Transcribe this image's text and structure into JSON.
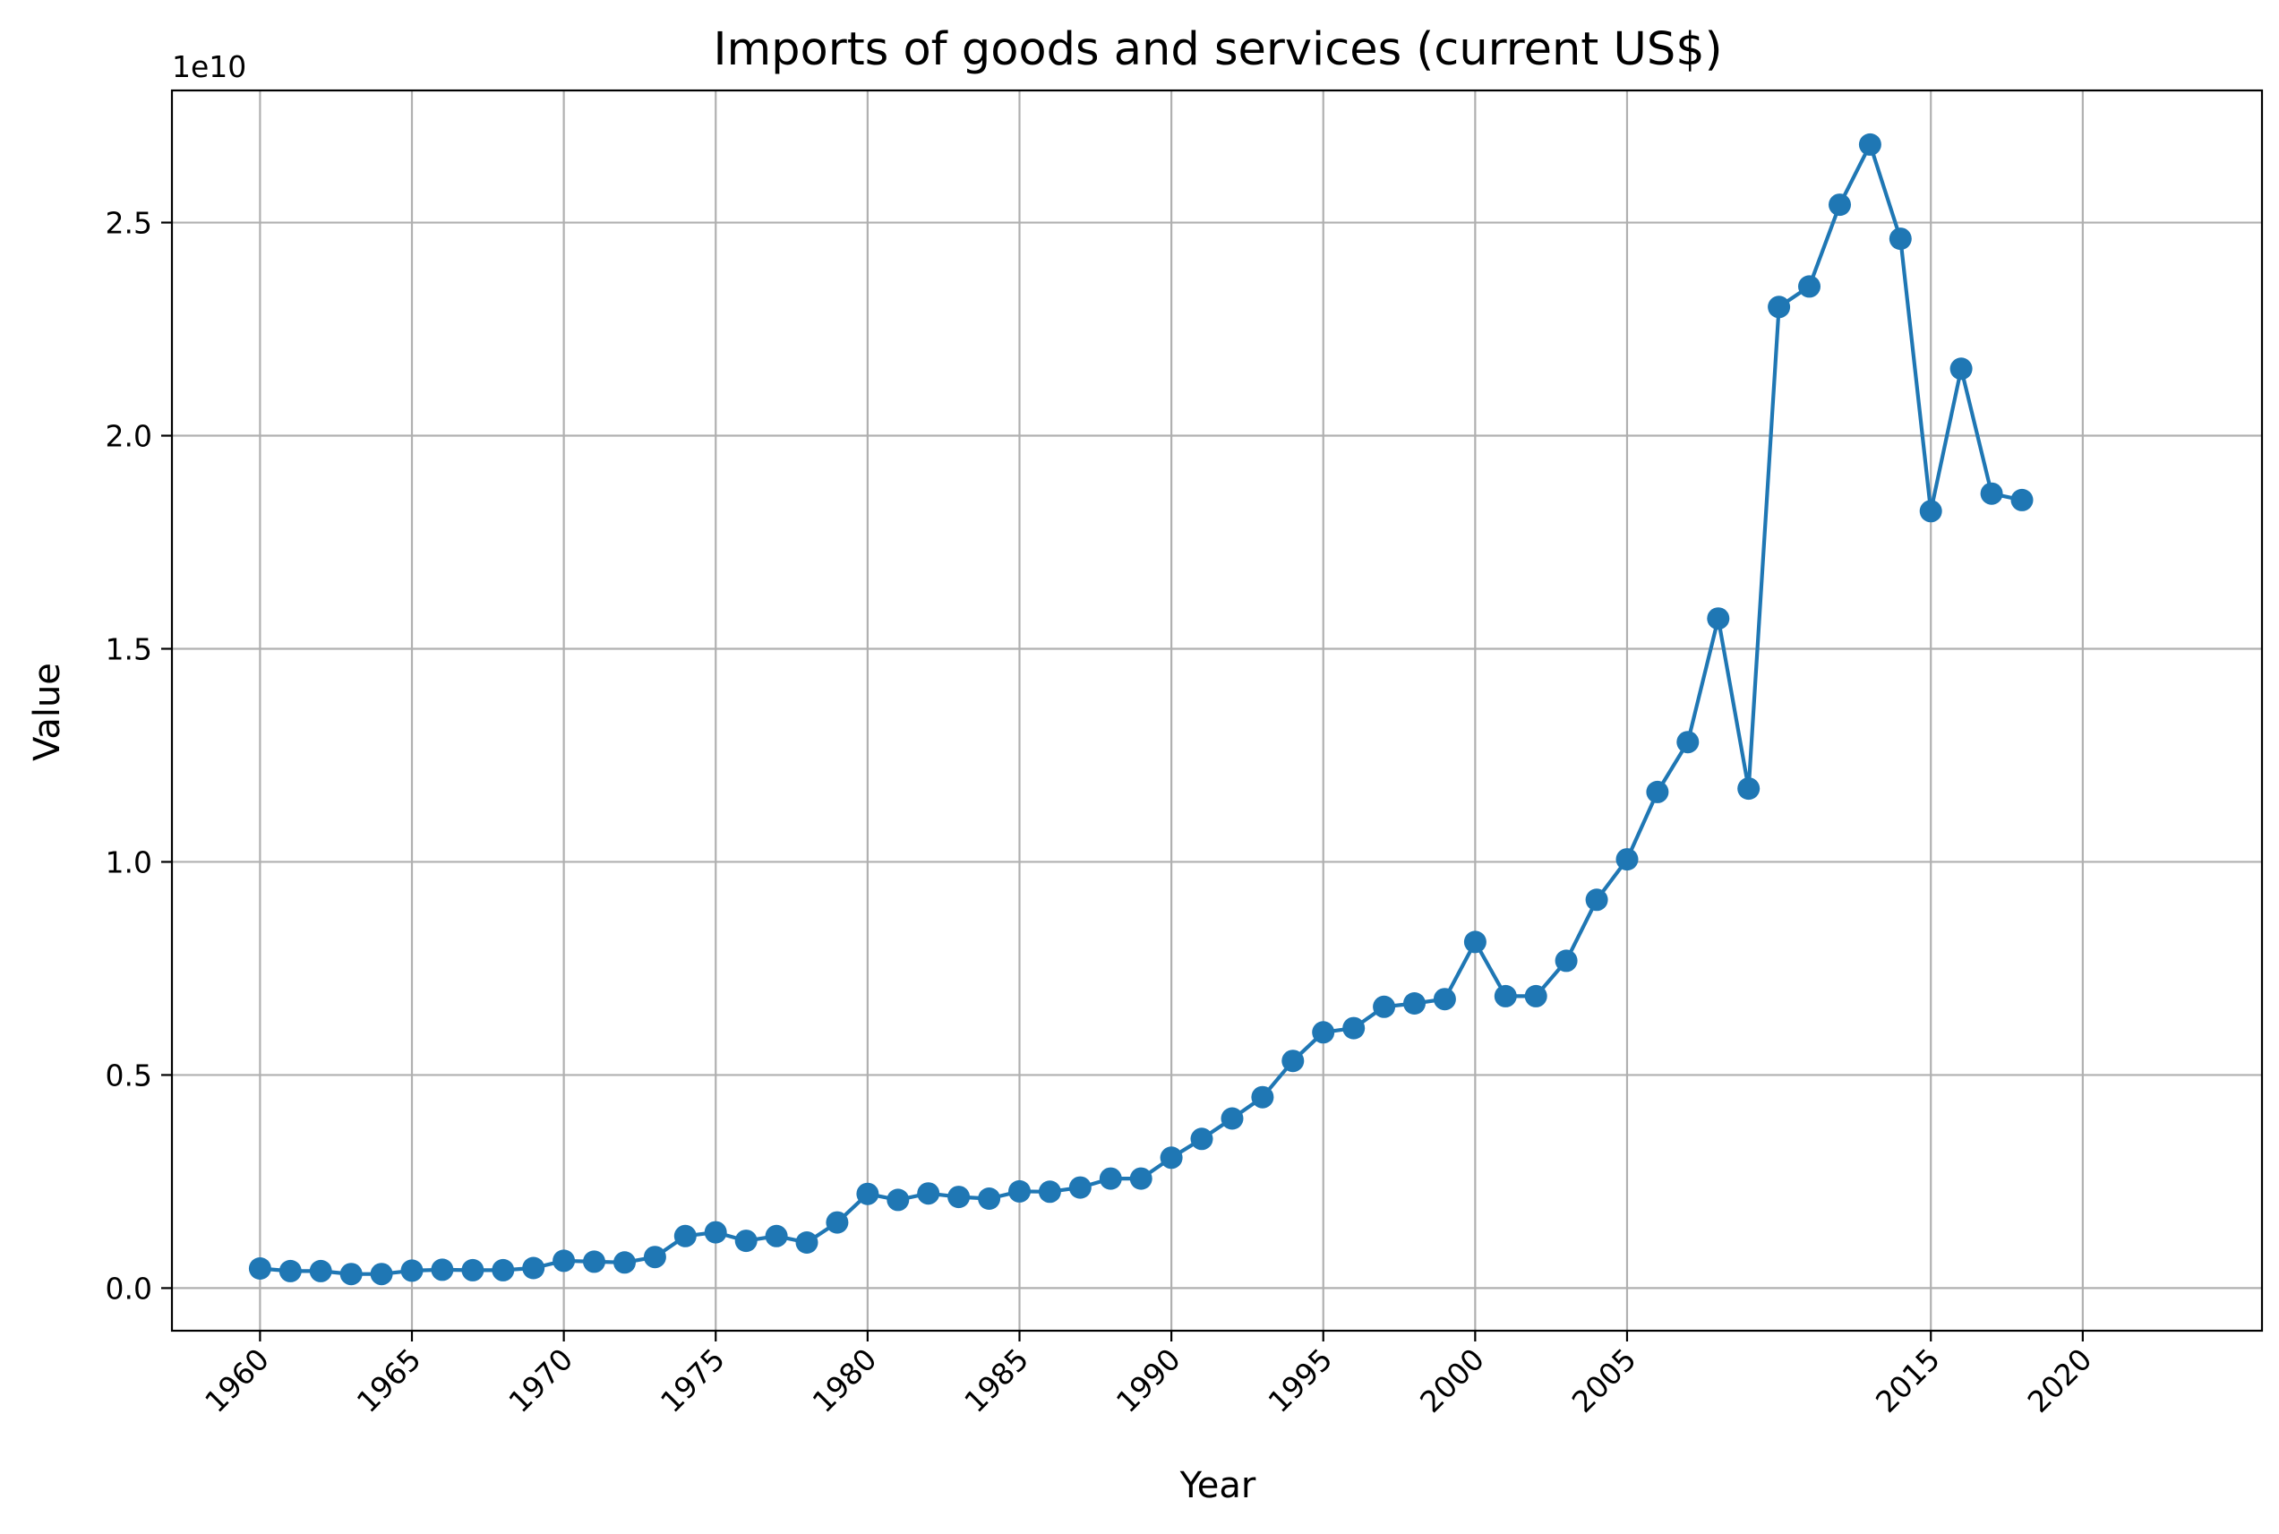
{
  "chart_data": {
    "type": "line",
    "title": "Imports of goods and services (current US$)",
    "xlabel": "Year",
    "ylabel": "Value",
    "y_offset_label": "1e10",
    "y_scale": 10000000000,
    "ylim": [
      -0.1,
      2.81
    ],
    "xlim": [
      1957.1,
      2025.9
    ],
    "grid": true,
    "marker": "circle",
    "color": "#1f77b4",
    "x_tick_labels": [
      "1960",
      "1965",
      "1970",
      "1975",
      "1980",
      "1985",
      "1990",
      "1995",
      "2000",
      "2005",
      "2015",
      "2020"
    ],
    "y_tick_labels": [
      "0.0",
      "0.5",
      "1.0",
      "1.5",
      "2.0",
      "2.5"
    ],
    "x": [
      1960,
      1961,
      1962,
      1963,
      1964,
      1965,
      1966,
      1967,
      1968,
      1969,
      1970,
      1971,
      1972,
      1973,
      1974,
      1975,
      1976,
      1977,
      1978,
      1979,
      1980,
      1981,
      1982,
      1983,
      1984,
      1985,
      1986,
      1987,
      1988,
      1989,
      1990,
      1991,
      1992,
      1993,
      1994,
      1995,
      1996,
      1997,
      1998,
      1999,
      2000,
      2001,
      2002,
      2003,
      2004,
      2005,
      2006,
      2007,
      2008,
      2009,
      2010,
      2011,
      2012,
      2013,
      2014,
      2015,
      2016,
      2017,
      2018
    ],
    "series": [
      {
        "values": [
          0.046,
          0.04,
          0.04,
          0.033,
          0.033,
          0.041,
          0.043,
          0.042,
          0.042,
          0.047,
          0.064,
          0.062,
          0.06,
          0.073,
          0.122,
          0.131,
          0.111,
          0.122,
          0.107,
          0.154,
          0.221,
          0.207,
          0.222,
          0.214,
          0.21,
          0.227,
          0.226,
          0.236,
          0.257,
          0.257,
          0.306,
          0.35,
          0.398,
          0.448,
          0.533,
          0.6,
          0.61,
          0.66,
          0.668,
          0.678,
          0.812,
          0.685,
          0.685,
          0.768,
          0.911,
          1.006,
          1.164,
          1.281,
          1.571,
          1.172,
          2.302,
          2.35,
          2.542,
          2.683,
          2.462,
          1.823,
          2.157,
          1.864,
          1.849
        ]
      }
    ]
  }
}
